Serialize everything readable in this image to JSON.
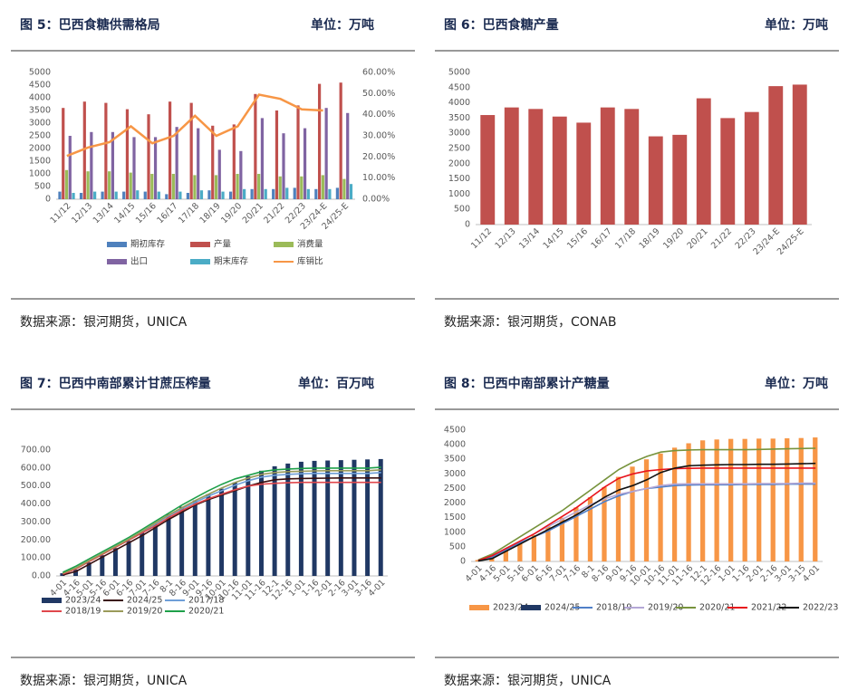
{
  "chart_data": [
    {
      "type": "combo",
      "title": "图 5：巴西食糖供需格局",
      "unit": "单位：万吨",
      "source": "数据来源：银河期货，UNICA",
      "categories": [
        "11/12",
        "12/13",
        "13/14",
        "14/15",
        "15/16",
        "16/17",
        "17/18",
        "18/19",
        "19/20",
        "20/21",
        "21/22",
        "22/23",
        "23/24-E",
        "24/25-E"
      ],
      "ylim": [
        0,
        5000
      ],
      "yticks": [
        0,
        500,
        1000,
        1500,
        2000,
        2500,
        3000,
        3500,
        4000,
        4500,
        5000
      ],
      "y2lim": [
        0,
        60
      ],
      "y2ticks": [
        {
          "value": 0,
          "label": "0.00%"
        },
        {
          "value": 10,
          "label": "10.00%"
        },
        {
          "value": 20,
          "label": "20.00%"
        },
        {
          "value": 30,
          "label": "30.00%"
        },
        {
          "value": 40,
          "label": "40.00%"
        },
        {
          "value": 50,
          "label": "50.00%"
        },
        {
          "value": 60,
          "label": "60.00%"
        }
      ],
      "series": [
        {
          "name": "期初库存",
          "kind": "bar",
          "color": "#4f81bd",
          "values": [
            300,
            250,
            300,
            300,
            300,
            200,
            250,
            350,
            300,
            400,
            400,
            450,
            400,
            450
          ]
        },
        {
          "name": "产量",
          "kind": "bar",
          "color": "#c0504d",
          "values": [
            3600,
            3850,
            3800,
            3550,
            3350,
            3850,
            3800,
            2900,
            2950,
            4150,
            3500,
            3700,
            4550,
            4600
          ]
        },
        {
          "name": "消费量",
          "kind": "bar",
          "color": "#9bbb59",
          "values": [
            1150,
            1100,
            1100,
            1050,
            1000,
            1000,
            950,
            950,
            1000,
            1000,
            900,
            900,
            950,
            800
          ]
        },
        {
          "name": "出口",
          "kind": "bar",
          "color": "#8064a2",
          "values": [
            2500,
            2650,
            2650,
            2450,
            2450,
            2850,
            2800,
            1950,
            1900,
            3200,
            2600,
            2800,
            3600,
            3400
          ]
        },
        {
          "name": "期末库存",
          "kind": "bar",
          "color": "#4bacc6",
          "values": [
            250,
            300,
            300,
            350,
            300,
            300,
            350,
            300,
            400,
            400,
            450,
            400,
            400,
            600
          ]
        },
        {
          "name": "库销比",
          "kind": "line",
          "axis": "y2",
          "color": "#f79646",
          "values": [
            20.5,
            24.5,
            27,
            34.5,
            26.5,
            30,
            39.5,
            30,
            34.5,
            49.5,
            47.5,
            42.5,
            42,
            null
          ]
        }
      ]
    },
    {
      "type": "bar",
      "title": "图 6：巴西食糖产量",
      "unit": "单位：万吨",
      "source": "数据来源：银河期货，CONAB",
      "categories": [
        "11/12",
        "12/13",
        "13/14",
        "14/15",
        "15/16",
        "16/17",
        "17/18",
        "18/19",
        "19/20",
        "20/21",
        "21/22",
        "22/23",
        "23/24-E",
        "24/25-E"
      ],
      "ylim": [
        0,
        5000
      ],
      "yticks": [
        0,
        500,
        1000,
        1500,
        2000,
        2500,
        3000,
        3500,
        4000,
        4500,
        5000
      ],
      "color": "#c0504d",
      "values": [
        3600,
        3850,
        3800,
        3550,
        3350,
        3850,
        3800,
        2900,
        2950,
        4150,
        3500,
        3700,
        4550,
        4600
      ]
    },
    {
      "type": "combo",
      "title": "图 7：巴西中南部累计甘蔗压榨量",
      "unit": "单位：百万吨",
      "source": "数据来源：银河期货，UNICA",
      "categories": [
        "4-01",
        "4-16",
        "5-01",
        "5-16",
        "6-01",
        "6-16",
        "7-01",
        "7-16",
        "8-1",
        "8-16",
        "9-01",
        "9-16",
        "10-01",
        "10-16",
        "11-01",
        "11-16",
        "12-1",
        "12-16",
        "1-01",
        "1-16",
        "2-01",
        "2-16",
        "3-01",
        "3-16",
        "4-01"
      ],
      "ylim": [
        0,
        700
      ],
      "yticks": [
        {
          "value": 0,
          "label": "0.00"
        },
        {
          "value": 100,
          "label": "100.00"
        },
        {
          "value": 200,
          "label": "200.00"
        },
        {
          "value": 300,
          "label": "300.00"
        },
        {
          "value": 400,
          "label": "400.00"
        },
        {
          "value": 500,
          "label": "500.00"
        },
        {
          "value": 600,
          "label": "600.00"
        },
        {
          "value": 700,
          "label": "700.00"
        }
      ],
      "series": [
        {
          "name": "2023/24",
          "kind": "bar",
          "color": "#203864",
          "values": [
            15,
            35,
            75,
            115,
            155,
            195,
            245,
            290,
            345,
            385,
            420,
            455,
            485,
            520,
            555,
            585,
            610,
            625,
            635,
            640,
            642,
            644,
            646,
            648,
            650
          ]
        },
        {
          "name": "2024/25",
          "kind": "line",
          "color": "#3a1010",
          "values": [
            5,
            25,
            65,
            105,
            145,
            185,
            225,
            270,
            315,
            355,
            395,
            425,
            450,
            475,
            500,
            520,
            535,
            540,
            542,
            543,
            544,
            545,
            545,
            545,
            545
          ]
        },
        {
          "name": "2017/18",
          "kind": "line",
          "color": "#6f9fd8",
          "values": [
            15,
            45,
            85,
            125,
            165,
            205,
            245,
            290,
            335,
            375,
            410,
            445,
            475,
            505,
            530,
            550,
            560,
            565,
            568,
            570,
            570,
            570,
            570,
            570,
            575
          ]
        },
        {
          "name": "2018/19",
          "kind": "line",
          "color": "#e0474c",
          "values": [
            10,
            40,
            80,
            120,
            160,
            200,
            240,
            280,
            325,
            365,
            400,
            430,
            455,
            480,
            500,
            510,
            515,
            518,
            520,
            520,
            520,
            520,
            520,
            520,
            520
          ]
        },
        {
          "name": "2019/20",
          "kind": "line",
          "color": "#9a9a5a",
          "values": [
            15,
            45,
            85,
            125,
            165,
            205,
            250,
            295,
            340,
            380,
            420,
            455,
            490,
            520,
            545,
            565,
            575,
            580,
            582,
            584,
            585,
            585,
            585,
            585,
            590
          ]
        },
        {
          "name": "2020/21",
          "kind": "line",
          "color": "#1fa04a",
          "values": [
            20,
            55,
            95,
            135,
            175,
            215,
            260,
            305,
            350,
            395,
            435,
            475,
            510,
            540,
            560,
            580,
            590,
            595,
            598,
            600,
            600,
            600,
            600,
            600,
            605
          ]
        }
      ]
    },
    {
      "type": "combo",
      "title": "图 8：巴西中南部累计产糖量",
      "unit": "单位：万吨",
      "source": "数据来源：银河期货，UNICA",
      "categories": [
        "4-01",
        "4-16",
        "5-01",
        "5-16",
        "6-01",
        "6-16",
        "7-01",
        "7-16",
        "8-1",
        "8-16",
        "9-01",
        "9-16",
        "10-01",
        "10-16",
        "11-01",
        "11-16",
        "12-1",
        "12-16",
        "1-01",
        "1-16",
        "2-01",
        "2-16",
        "3-01",
        "3-15",
        "4-01"
      ],
      "ylim": [
        0,
        4500
      ],
      "yticks": [
        0,
        500,
        1000,
        1500,
        2000,
        2500,
        3000,
        3500,
        4000,
        4500
      ],
      "series": [
        {
          "name": "2023/24",
          "kind": "bar",
          "color": "#f79646",
          "values": [
            50,
            200,
            400,
            650,
            900,
            1200,
            1500,
            1850,
            2200,
            2550,
            2900,
            3250,
            3500,
            3700,
            3900,
            4050,
            4150,
            4180,
            4200,
            4200,
            4210,
            4210,
            4220,
            4230,
            4250
          ]
        },
        {
          "name": "2024/25",
          "kind": "bar",
          "color": "#203864",
          "values": [
            null,
            null,
            null,
            null,
            null,
            null,
            null,
            null,
            null,
            null,
            null,
            null,
            null,
            null,
            null,
            null,
            null,
            null,
            null,
            null,
            null,
            null,
            null,
            null,
            null
          ]
        },
        {
          "name": "2018/19",
          "kind": "line",
          "color": "#4f7fc8",
          "values": [
            30,
            150,
            400,
            650,
            850,
            1050,
            1300,
            1550,
            1800,
            2050,
            2250,
            2400,
            2500,
            2550,
            2600,
            2620,
            2630,
            2630,
            2630,
            2640,
            2640,
            2640,
            2650,
            2650,
            2650
          ]
        },
        {
          "name": "2019/20",
          "kind": "line",
          "color": "#b4a7d6",
          "values": [
            30,
            200,
            450,
            700,
            950,
            1200,
            1450,
            1700,
            1950,
            2150,
            2300,
            2400,
            2500,
            2600,
            2650,
            2660,
            2660,
            2660,
            2660,
            2660,
            2670,
            2670,
            2670,
            2680,
            2680
          ]
        },
        {
          "name": "2020/21",
          "kind": "line",
          "color": "#77933c",
          "values": [
            50,
            250,
            550,
            850,
            1150,
            1450,
            1750,
            2100,
            2450,
            2800,
            3150,
            3400,
            3600,
            3750,
            3800,
            3820,
            3830,
            3830,
            3830,
            3830,
            3840,
            3850,
            3860,
            3870,
            3880
          ]
        },
        {
          "name": "2021/22",
          "kind": "line",
          "color": "#e8141c",
          "values": [
            30,
            200,
            450,
            700,
            950,
            1250,
            1550,
            1850,
            2200,
            2550,
            2850,
            3000,
            3100,
            3150,
            3180,
            3190,
            3200,
            3200,
            3200,
            3200,
            3200,
            3200,
            3200,
            3200,
            3200
          ]
        },
        {
          "name": "2022/23",
          "kind": "line",
          "color": "#111111",
          "values": [
            20,
            100,
            350,
            600,
            850,
            1100,
            1350,
            1600,
            1900,
            2200,
            2450,
            2600,
            2800,
            3050,
            3200,
            3280,
            3300,
            3310,
            3320,
            3320,
            3330,
            3330,
            3340,
            3350,
            3360
          ]
        }
      ]
    }
  ]
}
